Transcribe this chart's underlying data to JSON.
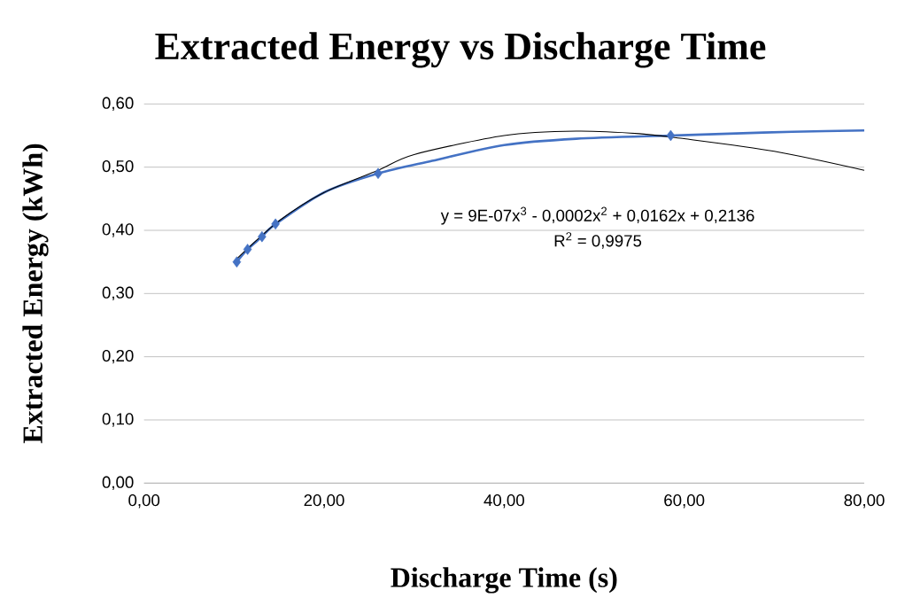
{
  "chart_data": {
    "type": "scatter",
    "title": "Extracted Energy vs Discharge Time",
    "xlabel": "Discharge Time (s)",
    "ylabel": "Extracted Energy (kWh)",
    "series": [
      {
        "type": "line",
        "color": "#4472c4",
        "marker": "none",
        "x": [
          10.3,
          11.5,
          13.1,
          14.6,
          20,
          26.0,
          32,
          40,
          48,
          58.5,
          65,
          72,
          80
        ],
        "values": [
          0.35,
          0.37,
          0.39,
          0.41,
          0.46,
          0.49,
          0.51,
          0.535,
          0.545,
          0.55,
          0.553,
          0.556,
          0.558
        ]
      },
      {
        "color": "#4472c4",
        "marker": "diamond",
        "x": [
          10.3,
          11.5,
          13.1,
          14.6,
          26.0,
          58.5
        ],
        "values": [
          0.35,
          0.37,
          0.39,
          0.41,
          0.49,
          0.55
        ]
      },
      {
        "type": "line",
        "color": "#000000",
        "marker": "none",
        "x": [
          10.3,
          15,
          20,
          26,
          30,
          40,
          48,
          55,
          60,
          70,
          80
        ],
        "values": [
          0.355,
          0.415,
          0.46,
          0.495,
          0.52,
          0.55,
          0.557,
          0.553,
          0.545,
          0.525,
          0.495
        ]
      }
    ],
    "xlim": [
      0,
      80
    ],
    "xticks": [
      {
        "value": 0,
        "label": "0,00"
      },
      {
        "value": 20,
        "label": "20,00"
      },
      {
        "value": 40,
        "label": "40,00"
      },
      {
        "value": 60,
        "label": "60,00"
      },
      {
        "value": 80,
        "label": "80,00"
      }
    ],
    "ylim": [
      0,
      0.6
    ],
    "yticks": [
      {
        "value": 0,
        "label": "0,00"
      },
      {
        "value": 0.1,
        "label": "0,10"
      },
      {
        "value": 0.2,
        "label": "0,20"
      },
      {
        "value": 0.3,
        "label": "0,30"
      },
      {
        "value": 0.4,
        "label": "0,40"
      },
      {
        "value": 0.5,
        "label": "0,50"
      },
      {
        "value": 0.6,
        "label": "0,60"
      }
    ],
    "grid": "y",
    "annotations": [
      "y = 9E-07x$^{3}$ - 0,0002x$^{2}$ + 0,0162x + 0,2136",
      "R$^{2}$ = 0,9975"
    ]
  }
}
